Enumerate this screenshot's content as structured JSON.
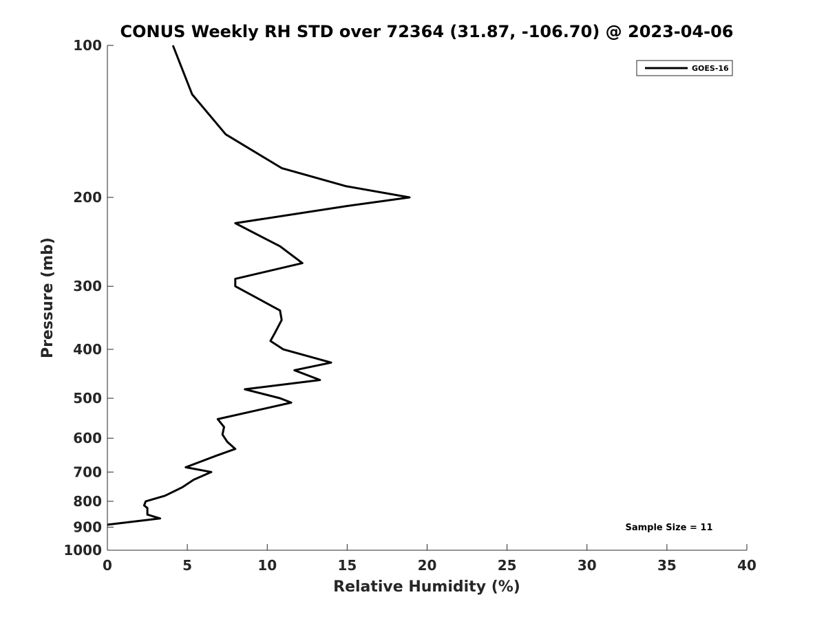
{
  "chart_data": {
    "type": "line",
    "title": "CONUS Weekly RH STD over 72364 (31.87, -106.70) @ 2023-04-06",
    "xlabel": "Relative Humidity (%)",
    "ylabel": "Pressure (mb)",
    "xlim": [
      0,
      40
    ],
    "ylim": [
      1000,
      100
    ],
    "yscale": "log",
    "y_reversed": true,
    "xticks": [
      0,
      5,
      10,
      15,
      20,
      25,
      30,
      35,
      40
    ],
    "yticks": [
      100,
      200,
      300,
      400,
      500,
      600,
      700,
      800,
      900,
      1000
    ],
    "grid": false,
    "legend_location": "top-right",
    "annotation": "Sample Size = 11",
    "series": [
      {
        "name": "GOES-16",
        "color": "#000000",
        "points": [
          {
            "x": 4.1,
            "y": 100
          },
          {
            "x": 5.3,
            "y": 125
          },
          {
            "x": 7.4,
            "y": 150
          },
          {
            "x": 10.9,
            "y": 175
          },
          {
            "x": 14.9,
            "y": 190
          },
          {
            "x": 18.9,
            "y": 200
          },
          {
            "x": 15.0,
            "y": 208
          },
          {
            "x": 8.0,
            "y": 225
          },
          {
            "x": 10.8,
            "y": 250
          },
          {
            "x": 12.2,
            "y": 270
          },
          {
            "x": 8.0,
            "y": 290
          },
          {
            "x": 8.0,
            "y": 300
          },
          {
            "x": 10.8,
            "y": 335
          },
          {
            "x": 10.9,
            "y": 350
          },
          {
            "x": 10.5,
            "y": 370
          },
          {
            "x": 10.2,
            "y": 385
          },
          {
            "x": 11.0,
            "y": 400
          },
          {
            "x": 14.0,
            "y": 425
          },
          {
            "x": 11.7,
            "y": 440
          },
          {
            "x": 13.3,
            "y": 460
          },
          {
            "x": 8.6,
            "y": 480
          },
          {
            "x": 10.8,
            "y": 500
          },
          {
            "x": 11.5,
            "y": 510
          },
          {
            "x": 6.9,
            "y": 550
          },
          {
            "x": 7.3,
            "y": 570
          },
          {
            "x": 7.2,
            "y": 590
          },
          {
            "x": 7.5,
            "y": 610
          },
          {
            "x": 8.0,
            "y": 630
          },
          {
            "x": 6.8,
            "y": 650
          },
          {
            "x": 4.9,
            "y": 685
          },
          {
            "x": 6.5,
            "y": 700
          },
          {
            "x": 5.4,
            "y": 725
          },
          {
            "x": 4.7,
            "y": 750
          },
          {
            "x": 3.6,
            "y": 780
          },
          {
            "x": 2.4,
            "y": 800
          },
          {
            "x": 2.3,
            "y": 815
          },
          {
            "x": 2.5,
            "y": 825
          },
          {
            "x": 2.5,
            "y": 850
          },
          {
            "x": 3.3,
            "y": 865
          },
          {
            "x": 0.0,
            "y": 890
          }
        ]
      }
    ]
  }
}
